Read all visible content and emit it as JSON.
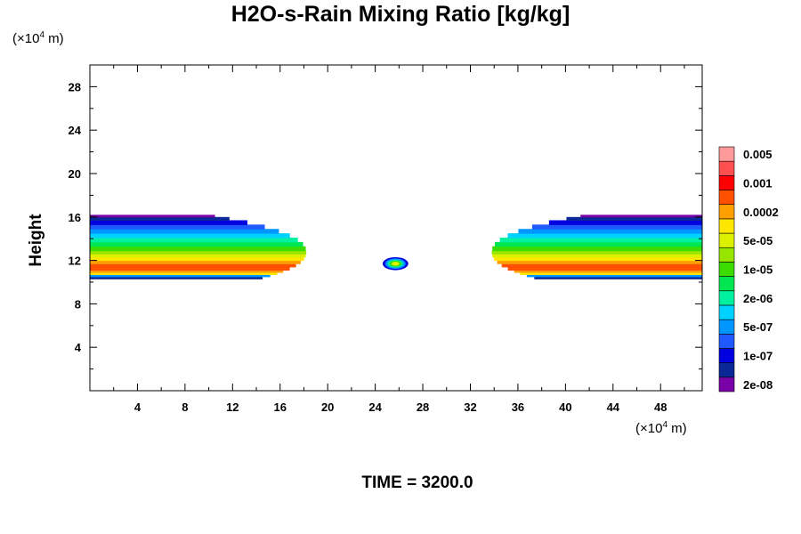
{
  "chart_data": {
    "type": "heatmap",
    "title": "H2O-s-Rain Mixing Ratio [kg/kg]",
    "ylabel": "Height",
    "x_unit": {
      "prefix": "(×10",
      "exp": "4",
      "suffix": " m)"
    },
    "y_unit": {
      "prefix": "(×10",
      "exp": "4",
      "suffix": " m)"
    },
    "footer": "TIME = 3200.0",
    "xlim": [
      0,
      51.5
    ],
    "ylim": [
      0,
      30
    ],
    "x_ticks": [
      4,
      8,
      12,
      16,
      20,
      24,
      28,
      32,
      36,
      40,
      44,
      48
    ],
    "y_ticks": [
      4,
      8,
      12,
      16,
      20,
      24,
      28
    ],
    "colorbar": {
      "colors": [
        "#7a00a8",
        "#0a2896",
        "#0000e0",
        "#1e5aff",
        "#0096ff",
        "#00d2ff",
        "#00f0a0",
        "#00e650",
        "#3cdc00",
        "#96e600",
        "#dcf000",
        "#ffe600",
        "#ffa000",
        "#ff5000",
        "#ff0000",
        "#ff5050",
        "#ff9a9a"
      ],
      "labels": [
        "2e-08",
        "1e-07",
        "5e-07",
        "2e-06",
        "1e-05",
        "5e-05",
        "0.0002",
        "0.001",
        "0.005"
      ]
    },
    "regions": [
      {
        "name": "left-band",
        "x_start": 0,
        "x_end": 18.2,
        "y_bottom": 10.3,
        "y_top": 16.2
      },
      {
        "name": "right-band",
        "x_start": 33.8,
        "x_end": 51.5,
        "y_bottom": 10.3,
        "y_top": 16.2
      },
      {
        "name": "center-cell",
        "x_center": 25.7,
        "y_center": 11.7,
        "x_radius": 0.9,
        "y_radius": 0.6
      }
    ]
  }
}
